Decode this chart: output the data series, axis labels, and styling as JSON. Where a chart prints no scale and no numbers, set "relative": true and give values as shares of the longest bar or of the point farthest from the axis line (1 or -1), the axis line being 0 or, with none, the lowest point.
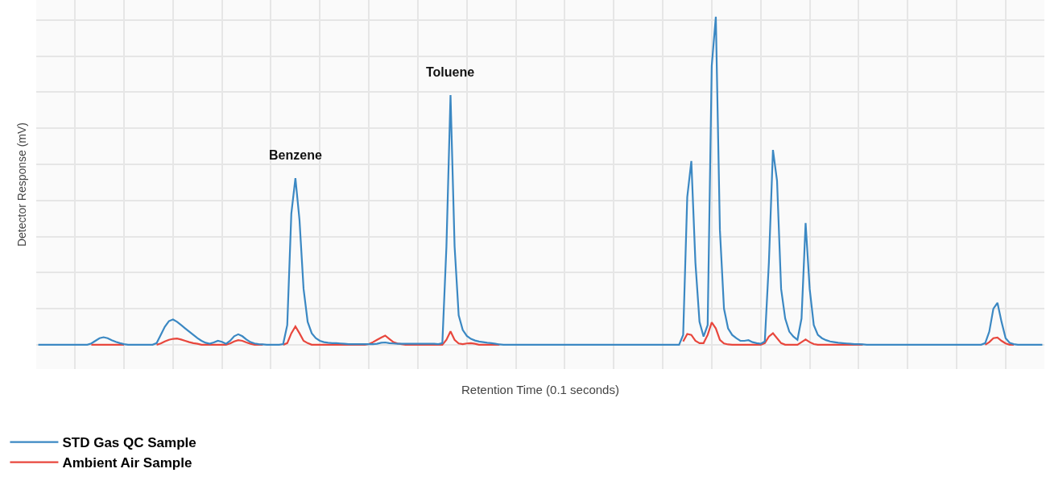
{
  "chart_data": {
    "type": "line",
    "relative": true,
    "xlabel": "Retention Time (0.1 seconds)",
    "ylabel": "Detector Response (mV)",
    "categories": [
      null,
      null,
      null,
      null,
      null,
      null,
      null,
      null,
      null,
      null,
      null,
      null,
      null,
      null,
      null,
      null,
      null,
      null,
      null,
      null,
      null,
      null,
      null,
      null,
      null,
      null,
      null,
      null,
      null,
      null,
      null,
      null,
      null,
      null,
      null,
      null,
      null,
      null,
      null,
      null,
      null,
      null,
      null,
      null,
      null,
      null,
      null,
      null,
      null,
      null,
      null,
      null,
      null,
      null,
      null,
      null,
      null,
      null,
      null,
      null,
      null,
      null,
      null,
      null,
      null,
      null,
      null,
      null,
      null,
      null,
      null,
      null,
      null,
      null,
      null,
      null,
      null,
      null,
      null,
      null,
      null,
      null,
      null,
      null,
      null,
      null,
      null,
      null,
      null,
      null,
      null,
      null,
      null,
      null,
      null,
      null,
      null,
      null,
      null,
      null,
      null,
      null,
      null,
      null,
      null,
      null,
      null,
      null,
      null,
      null,
      null,
      null,
      null,
      null,
      null,
      null,
      null,
      null,
      null,
      null,
      null,
      null,
      null,
      null,
      null,
      null,
      null,
      null,
      null,
      null,
      null,
      null,
      null,
      null,
      null,
      null,
      null,
      null,
      null,
      null,
      null,
      null,
      null,
      null,
      null,
      null,
      null,
      null,
      null,
      null,
      null,
      null,
      null,
      null,
      null,
      null,
      null,
      null,
      null,
      null,
      null,
      null,
      null,
      null,
      null,
      null,
      null,
      null,
      null,
      null,
      null,
      null,
      null,
      null,
      null,
      null,
      null,
      null,
      null,
      null,
      null,
      null,
      null,
      null,
      null,
      null,
      null,
      null,
      null,
      null,
      null,
      null,
      null,
      null,
      null,
      null,
      null,
      null,
      null,
      null,
      null,
      null,
      null,
      null,
      null,
      null,
      null,
      null,
      null,
      null,
      null,
      null,
      null,
      null,
      null,
      null,
      null,
      null,
      null,
      null,
      null,
      null,
      null,
      null,
      null,
      null,
      null,
      null,
      null,
      null,
      null,
      null,
      null,
      null,
      null,
      null,
      null,
      null,
      null,
      null,
      null,
      null,
      null,
      null,
      null,
      null,
      null
    ],
    "series": [
      {
        "name": "STD Gas QC Sample",
        "color": "#3b88c3",
        "values": [
          0,
          0,
          0,
          0,
          0,
          0,
          0,
          0,
          0,
          0,
          0,
          0,
          0,
          0.004,
          0.012,
          0.02,
          0.023,
          0.02,
          0.014,
          0.009,
          0.005,
          0.002,
          0,
          0,
          0,
          0,
          0,
          0,
          0,
          0.005,
          0.03,
          0.055,
          0.072,
          0.077,
          0.07,
          0.06,
          0.05,
          0.04,
          0.03,
          0.02,
          0.012,
          0.006,
          0.003,
          0.007,
          0.012,
          0.009,
          0.003,
          0.012,
          0.026,
          0.032,
          0.026,
          0.016,
          0.008,
          0.004,
          0.002,
          0.001,
          0,
          0,
          0,
          0,
          0.002,
          0.06,
          0.4,
          0.508,
          0.38,
          0.17,
          0.07,
          0.035,
          0.02,
          0.012,
          0.008,
          0.006,
          0.005,
          0.005,
          0.004,
          0.003,
          0.002,
          0.002,
          0.002,
          0.002,
          0.002,
          0.002,
          0.002,
          0.003,
          0.006,
          0.007,
          0.005,
          0.004,
          0.003,
          0.003,
          0.003,
          0.003,
          0.003,
          0.003,
          0.003,
          0.003,
          0.003,
          0.003,
          0.002,
          0.005,
          0.3,
          0.761,
          0.3,
          0.09,
          0.045,
          0.027,
          0.018,
          0.013,
          0.01,
          0.008,
          0.006,
          0.005,
          0.003,
          0.001,
          0,
          0,
          0,
          0,
          0,
          0,
          0,
          0,
          0,
          0,
          0,
          0,
          0,
          0,
          0,
          0,
          0,
          0,
          0,
          0,
          0,
          0,
          0,
          0,
          0,
          0,
          0,
          0,
          0,
          0,
          0,
          0,
          0,
          0,
          0,
          0,
          0,
          0,
          0,
          0,
          0,
          0,
          0,
          0,
          0.03,
          0.45,
          0.56,
          0.25,
          0.07,
          0.025,
          0.06,
          0.85,
          1,
          0.35,
          0.11,
          0.05,
          0.03,
          0.02,
          0.012,
          0.012,
          0.014,
          0.008,
          0.005,
          0.003,
          0.01,
          0.25,
          0.594,
          0.5,
          0.17,
          0.08,
          0.04,
          0.025,
          0.015,
          0.08,
          0.371,
          0.17,
          0.06,
          0.03,
          0.02,
          0.014,
          0.01,
          0.008,
          0.006,
          0.005,
          0.004,
          0.003,
          0.002,
          0.002,
          0.001,
          0,
          0,
          0,
          0,
          0,
          0,
          0,
          0,
          0,
          0,
          0,
          0,
          0,
          0,
          0,
          0,
          0,
          0,
          0,
          0,
          0,
          0,
          0,
          0,
          0,
          0,
          0,
          0,
          0,
          0.005,
          0.04,
          0.11,
          0.128,
          0.07,
          0.02,
          0.006,
          0.002,
          0,
          0,
          0,
          0,
          0,
          0,
          0
        ]
      },
      {
        "name": "Ambient Air Sample",
        "color": "#e8473d",
        "values": [
          null,
          null,
          null,
          null,
          null,
          null,
          null,
          null,
          null,
          null,
          null,
          null,
          null,
          0,
          0,
          0,
          0,
          0,
          0,
          0,
          0,
          0,
          null,
          null,
          null,
          null,
          null,
          null,
          null,
          0,
          0.004,
          0.01,
          0.015,
          0.018,
          0.019,
          0.016,
          0.012,
          0.008,
          0.005,
          0.003,
          0,
          0,
          0,
          0,
          0,
          0,
          0,
          0.004,
          0.01,
          0.014,
          0.012,
          0.007,
          0.003,
          0,
          0,
          0,
          null,
          null,
          null,
          null,
          0,
          0.005,
          0.035,
          0.056,
          0.035,
          0.012,
          0.005,
          0,
          0,
          0,
          0,
          0,
          0,
          0,
          0,
          0,
          0,
          0,
          0,
          0,
          0,
          0.002,
          0.008,
          0.015,
          0.022,
          0.028,
          0.018,
          0.008,
          0.004,
          0.002,
          0,
          0,
          0,
          0,
          0,
          0,
          0,
          0,
          0,
          0,
          0.015,
          0.041,
          0.015,
          0.004,
          0.002,
          0.004,
          0.005,
          0.003,
          0,
          0,
          0,
          0,
          0,
          0,
          null,
          null,
          null,
          null,
          null,
          null,
          null,
          null,
          null,
          null,
          null,
          null,
          null,
          null,
          null,
          null,
          null,
          null,
          null,
          null,
          null,
          null,
          null,
          null,
          null,
          null,
          null,
          null,
          null,
          null,
          null,
          null,
          null,
          null,
          null,
          null,
          null,
          null,
          null,
          null,
          null,
          null,
          null,
          null,
          0.01,
          0.033,
          0.03,
          0.012,
          0.005,
          0.005,
          0.03,
          0.068,
          0.05,
          0.015,
          0.004,
          0.001,
          0,
          0,
          0,
          0,
          0,
          0,
          0,
          0,
          0.005,
          0.025,
          0.035,
          0.02,
          0.005,
          0,
          0,
          0,
          0,
          0.008,
          0.016,
          0.008,
          0.002,
          0,
          0,
          0,
          0,
          0,
          0,
          0,
          0,
          0,
          0,
          0,
          0,
          null,
          null,
          null,
          null,
          null,
          null,
          null,
          null,
          null,
          null,
          null,
          null,
          null,
          null,
          null,
          null,
          null,
          null,
          null,
          null,
          null,
          null,
          null,
          null,
          null,
          null,
          null,
          null,
          null,
          0,
          0.008,
          0.02,
          0.022,
          0.012,
          0.004,
          0,
          0,
          null,
          null,
          null,
          null,
          null,
          null,
          null
        ]
      }
    ],
    "annotations": [
      {
        "text": "Benzene",
        "y": 0.508
      },
      {
        "text": "Toluene",
        "y": 0.761
      }
    ],
    "grid": true,
    "legend": "bottom left"
  }
}
